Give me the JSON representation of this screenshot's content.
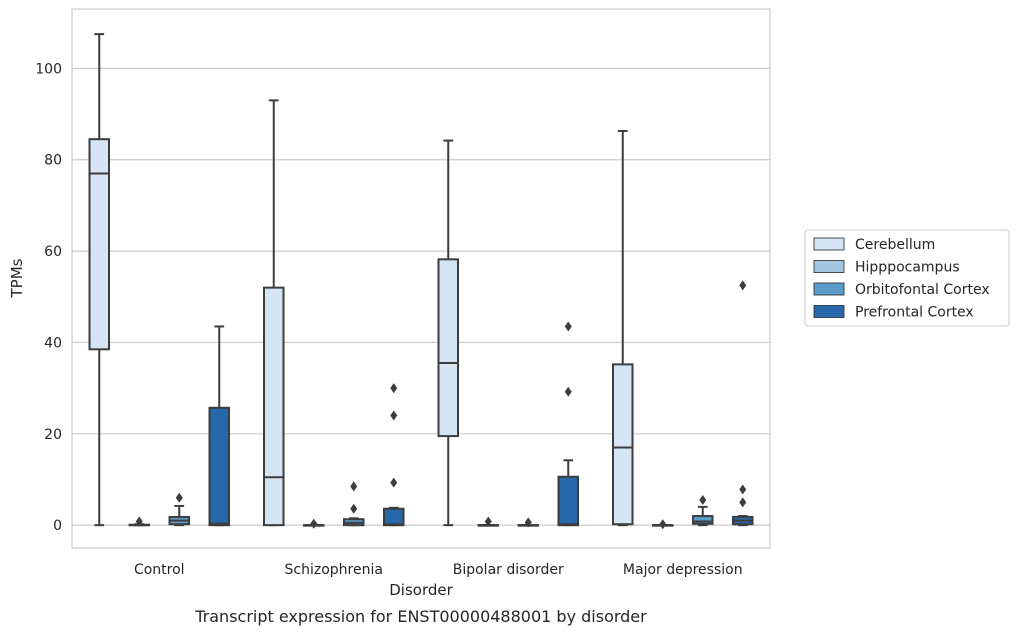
{
  "chart_data": {
    "type": "box",
    "title": "",
    "caption": "Transcript expression for ENST00000488001 by disorder",
    "xlabel": "Disorder",
    "ylabel": "TPMs",
    "ylim": [
      -5,
      113
    ],
    "yticks": [
      0,
      20,
      40,
      60,
      80,
      100
    ],
    "grid": "horizontal",
    "legend_position": "right",
    "categories": [
      "Control",
      "Schizophrenia",
      "Bipolar disorder",
      "Major depression"
    ],
    "series": [
      {
        "name": "Cerebellum",
        "color": "#d6e5f3",
        "boxes": [
          {
            "whisker_low": 0,
            "q1": 38.5,
            "median": 77,
            "q3": 84.5,
            "whisker_high": 107.5,
            "outliers": []
          },
          {
            "whisker_low": 0,
            "q1": 0,
            "median": 10.5,
            "q3": 52,
            "whisker_high": 93,
            "outliers": []
          },
          {
            "whisker_low": 0,
            "q1": 19.5,
            "median": 35.5,
            "q3": 58.2,
            "whisker_high": 84.2,
            "outliers": []
          },
          {
            "whisker_low": 0,
            "q1": 0.2,
            "median": 17,
            "q3": 35.2,
            "whisker_high": 86.3,
            "outliers": []
          }
        ]
      },
      {
        "name": "Hipppocampus",
        "color": "#a3c5df",
        "boxes": [
          {
            "whisker_low": 0,
            "q1": 0,
            "median": 0,
            "q3": 0.1,
            "whisker_high": 0.2,
            "outliers": [
              0.8
            ]
          },
          {
            "whisker_low": 0,
            "q1": 0,
            "median": 0,
            "q3": 0,
            "whisker_high": 0,
            "outliers": [
              0.3
            ]
          },
          {
            "whisker_low": 0,
            "q1": 0,
            "median": 0,
            "q3": 0,
            "whisker_high": 0,
            "outliers": [
              0.8
            ]
          },
          {
            "whisker_low": 0,
            "q1": 0,
            "median": 0,
            "q3": 0,
            "whisker_high": 0,
            "outliers": [
              0.2
            ]
          }
        ]
      },
      {
        "name": "Orbitofontal Cortex",
        "color": "#5c9cc9",
        "boxes": [
          {
            "whisker_low": 0,
            "q1": 0.2,
            "median": 1,
            "q3": 1.8,
            "whisker_high": 4.2,
            "outliers": [
              6
            ]
          },
          {
            "whisker_low": 0,
            "q1": 0,
            "median": 0.5,
            "q3": 1.3,
            "whisker_high": 1.5,
            "outliers": [
              3.6,
              8.5
            ]
          },
          {
            "whisker_low": 0,
            "q1": 0,
            "median": 0,
            "q3": 0,
            "whisker_high": 0,
            "outliers": [
              0.6
            ]
          },
          {
            "whisker_low": 0,
            "q1": 0.3,
            "median": 0.8,
            "q3": 2,
            "whisker_high": 4,
            "outliers": [
              5.5
            ]
          }
        ]
      },
      {
        "name": "Prefrontal Cortex",
        "color": "#2668aa",
        "boxes": [
          {
            "whisker_low": 0,
            "q1": 0,
            "median": 0.3,
            "q3": 25.7,
            "whisker_high": 43.5,
            "outliers": []
          },
          {
            "whisker_low": 0,
            "q1": 0,
            "median": 0.2,
            "q3": 3.6,
            "whisker_high": 3.8,
            "outliers": [
              9.3,
              24,
              30
            ]
          },
          {
            "whisker_low": 0,
            "q1": 0,
            "median": 0.2,
            "q3": 10.6,
            "whisker_high": 14.2,
            "outliers": [
              29.2,
              43.5
            ]
          },
          {
            "whisker_low": 0,
            "q1": 0.2,
            "median": 1,
            "q3": 1.8,
            "whisker_high": 2,
            "outliers": [
              5,
              7.8,
              52.5
            ]
          }
        ]
      }
    ]
  }
}
